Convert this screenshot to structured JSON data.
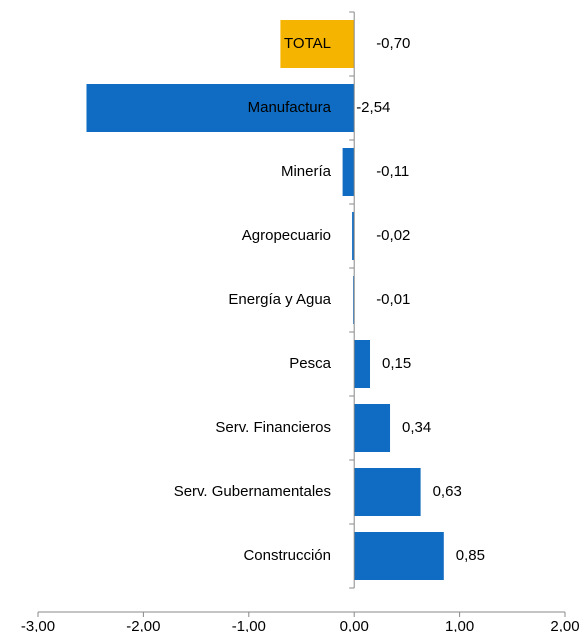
{
  "chart_data": {
    "type": "barh",
    "categories": [
      "TOTAL",
      "Manufactura",
      "Minería",
      "Agropecuario",
      "Energía y Agua",
      "Pesca",
      "Serv. Financieros",
      "Serv. Gubernamentales",
      "Construcción"
    ],
    "values": [
      -0.7,
      -2.54,
      -0.11,
      -0.02,
      -0.01,
      0.15,
      0.34,
      0.63,
      0.85
    ],
    "value_labels": [
      "-0,70",
      "-2,54",
      "-0,11",
      "-0,02",
      "-0,01",
      "0,15",
      "0,34",
      "0,63",
      "0,85"
    ],
    "colors": [
      "#f5b400",
      "#0f6cc2",
      "#0f6cc2",
      "#0f6cc2",
      "#0f6cc2",
      "#0f6cc2",
      "#0f6cc2",
      "#0f6cc2",
      "#0f6cc2"
    ],
    "label_color": "#7030a0",
    "xlim": [
      -3,
      2
    ],
    "xticks": [
      {
        "value": -3,
        "label": "-3,00"
      },
      {
        "value": -2,
        "label": "-2,00"
      },
      {
        "value": -1,
        "label": "-1,00"
      },
      {
        "value": 0,
        "label": "0,00"
      },
      {
        "value": 1,
        "label": "1,00"
      },
      {
        "value": 2,
        "label": "2,00"
      }
    ]
  }
}
